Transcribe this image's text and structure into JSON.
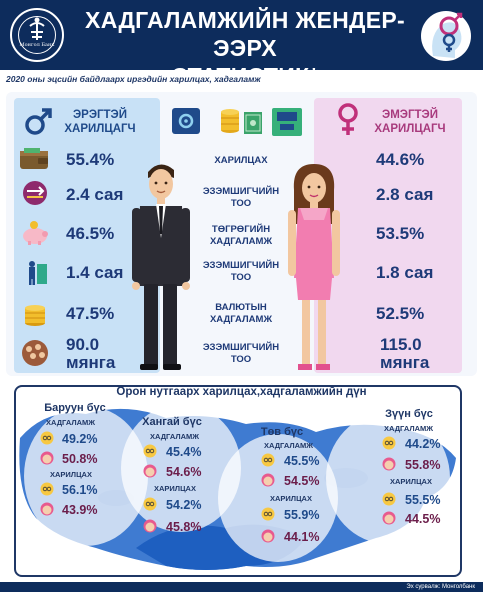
{
  "header": {
    "title_line1": "ХАДГАЛАМЖИЙН ЖЕНДЕР-ЭЭРХ",
    "title_line2": "СТАТИСТИК*",
    "logo_text": "Монгол Банк"
  },
  "subtitle": "2020 оны эцсийн байдлаарх иргэдийн харилцах, хадгаламж",
  "male": {
    "heading_line1": "ЭРЭГТЭЙ",
    "heading_line2": "ХАРИЛЦАГЧ",
    "values": [
      "55.4%",
      "2.4 сая",
      "46.5%",
      "1.4 сая",
      "47.5%"
    ],
    "last_value_line1": "90.0",
    "last_value_line2": "мянга"
  },
  "female": {
    "heading_line1": "ЭМЭГТЭЙ",
    "heading_line2": "ХАРИЛЦАГЧ",
    "values": [
      "44.6%",
      "2.8 сая",
      "53.5%",
      "1.8 сая",
      "52.5%"
    ],
    "last_value_line1": "115.0",
    "last_value_line2": "мянга"
  },
  "categories": [
    {
      "line1": "ХАРИЛЦАХ",
      "line2": ""
    },
    {
      "line1": "ЭЗЭМШИГЧИЙН",
      "line2": "ТОО"
    },
    {
      "line1": "ТӨГРӨГИЙН",
      "line2": "ХАДГАЛАМЖ"
    },
    {
      "line1": "ЭЗЭМШИГЧИЙН",
      "line2": "ТОО"
    },
    {
      "line1": "ВАЛЮТЫН",
      "line2": "ХАДГАЛАМЖ"
    },
    {
      "line1": "ЭЗЭМШИГЧИЙН",
      "line2": "ТОО"
    }
  ],
  "map": {
    "title": "Орон нутгаарх харилцах,хадгаламжийн дүн",
    "deposit_label": "ХАДГАЛАМЖ",
    "account_label": "ХАРИЛЦАХ",
    "regions": [
      {
        "name": "Баруун бүс",
        "deposit_m": "49.2%",
        "deposit_f": "50.8%",
        "account_m": "56.1%",
        "account_f": "43.9%"
      },
      {
        "name": "Хангай бүс",
        "deposit_m": "45.4%",
        "deposit_f": "54.6%",
        "account_m": "54.2%",
        "account_f": "45.8%"
      },
      {
        "name": "Төв бүс",
        "deposit_m": "45.5%",
        "deposit_f": "54.5%",
        "account_m": "55.9%",
        "account_f": "44.1%"
      },
      {
        "name": "Зүүн бүс",
        "deposit_m": "44.2%",
        "deposit_f": "55.8%",
        "account_m": "55.5%",
        "account_f": "44.5%"
      }
    ]
  },
  "footer": "Эх сурвалж: Монголбанк",
  "colors": {
    "navy": "#0d2c5c",
    "male_bg": "#c8e1f6",
    "female_bg": "#f1d8ef",
    "male_symbol": "#1f4a8a",
    "female_symbol": "#c0307a"
  },
  "icons": [
    "bank-logo-icon",
    "woman-head-gender-icon",
    "male-symbol-icon",
    "female-symbol-icon",
    "safe-icon",
    "coins-icon",
    "cash-icon",
    "atm-icon",
    "wallet-icon",
    "money-exchange-icon",
    "piggy-bank-icon",
    "coin-stack-icon",
    "crowd-icon",
    "man-face-icon",
    "woman-face-icon"
  ]
}
